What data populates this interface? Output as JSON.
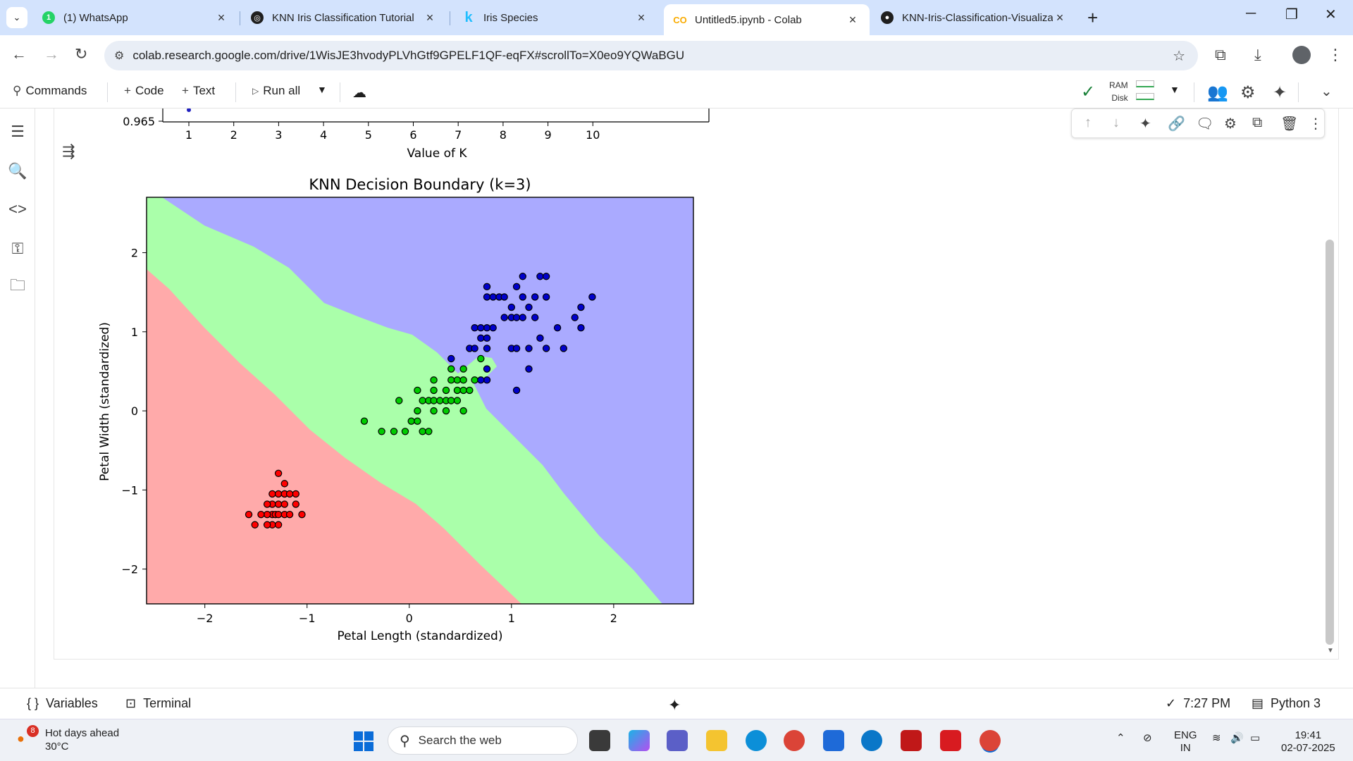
{
  "browser": {
    "tabs": [
      {
        "title": "(1) WhatsApp",
        "favicon": "whatsapp-icon",
        "active": false
      },
      {
        "title": "KNN Iris Classification Tutorial",
        "favicon": "openai-icon",
        "active": false
      },
      {
        "title": "Iris Species",
        "favicon": "kaggle-icon",
        "active": false
      },
      {
        "title": "Untitled5.ipynb - Colab",
        "favicon": "colab-icon",
        "active": true
      },
      {
        "title": "KNN-Iris-Classification-Visualiza",
        "favicon": "github-icon",
        "active": false
      }
    ],
    "whatsapp_badge": "1",
    "url": "colab.research.google.com/drive/1WisJE3hvodyPLVhGtf9GPELF1QF-eqFX#scrollTo=X0eo9YQWaBGU"
  },
  "colab": {
    "toolbar": {
      "commands": "Commands",
      "code": "Code",
      "text": "Text",
      "run_all": "Run all",
      "ram": "RAM",
      "disk": "Disk"
    },
    "status": {
      "variables": "Variables",
      "terminal": "Terminal",
      "time": "7:27 PM",
      "runtime": "Python 3"
    }
  },
  "chart_data": [
    {
      "type": "line",
      "title": "",
      "xlabel": "Value of K",
      "ylabel": "",
      "x_ticks": [
        "1",
        "2",
        "3",
        "4",
        "5",
        "6",
        "7",
        "8",
        "9",
        "10"
      ],
      "y_ticks_visible": [
        "0.965"
      ],
      "note": "top portion scrolled out of view"
    },
    {
      "type": "scatter",
      "title": "KNN Decision Boundary (k=3)",
      "xlabel": "Petal Length (standardized)",
      "ylabel": "Petal Width (standardized)",
      "xlim": [
        -2.57,
        2.78
      ],
      "ylim": [
        -2.44,
        2.7
      ],
      "x_ticks": [
        "−2",
        "−1",
        "0",
        "1",
        "2"
      ],
      "y_ticks": [
        "−2",
        "−1",
        "0",
        "1",
        "2"
      ],
      "regions": {
        "class_0": "#ffaaaa",
        "class_1": "#aaffaa",
        "class_2": "#aaaaff"
      },
      "series": [
        {
          "color": "#ff0000",
          "points": [
            [
              -1.34,
              -1.31
            ],
            [
              -1.31,
              -1.31
            ],
            [
              -1.28,
              -1.31
            ],
            [
              -1.22,
              -1.31
            ],
            [
              -1.17,
              -1.31
            ],
            [
              -1.39,
              -1.31
            ],
            [
              -1.45,
              -1.31
            ],
            [
              -1.34,
              -1.18
            ],
            [
              -1.28,
              -1.18
            ],
            [
              -1.22,
              -1.18
            ],
            [
              -1.11,
              -1.18
            ],
            [
              -1.39,
              -1.18
            ],
            [
              -1.34,
              -1.05
            ],
            [
              -1.28,
              -1.05
            ],
            [
              -1.22,
              -1.05
            ],
            [
              -1.11,
              -1.05
            ],
            [
              -1.57,
              -1.31
            ],
            [
              -1.51,
              -1.44
            ],
            [
              -1.34,
              -1.44
            ],
            [
              -1.28,
              -1.44
            ],
            [
              -1.39,
              -1.44
            ],
            [
              -1.22,
              -1.05
            ],
            [
              -1.22,
              -0.92
            ],
            [
              -1.28,
              -0.79
            ],
            [
              -1.05,
              -1.31
            ],
            [
              -1.17,
              -1.05
            ]
          ]
        },
        {
          "color": "#00cc00",
          "points": [
            [
              -0.44,
              -0.13
            ],
            [
              -0.27,
              -0.26
            ],
            [
              -0.15,
              -0.26
            ],
            [
              -0.04,
              -0.26
            ],
            [
              0.13,
              -0.26
            ],
            [
              0.19,
              -0.26
            ],
            [
              0.02,
              -0.13
            ],
            [
              0.08,
              -0.13
            ],
            [
              0.08,
              0.0
            ],
            [
              0.24,
              0.0
            ],
            [
              0.36,
              0.0
            ],
            [
              0.53,
              0.0
            ],
            [
              -0.1,
              0.13
            ],
            [
              0.13,
              0.13
            ],
            [
              0.19,
              0.13
            ],
            [
              0.24,
              0.13
            ],
            [
              0.3,
              0.13
            ],
            [
              0.36,
              0.13
            ],
            [
              0.41,
              0.13
            ],
            [
              0.47,
              0.13
            ],
            [
              0.08,
              0.26
            ],
            [
              0.24,
              0.26
            ],
            [
              0.36,
              0.26
            ],
            [
              0.47,
              0.26
            ],
            [
              0.53,
              0.26
            ],
            [
              0.59,
              0.26
            ],
            [
              0.24,
              0.39
            ],
            [
              0.41,
              0.39
            ],
            [
              0.47,
              0.39
            ],
            [
              0.53,
              0.39
            ],
            [
              0.64,
              0.39
            ],
            [
              0.41,
              0.53
            ],
            [
              0.53,
              0.53
            ],
            [
              0.7,
              0.66
            ]
          ]
        },
        {
          "color": "#0000cc",
          "points": [
            [
              0.41,
              0.66
            ],
            [
              0.59,
              0.79
            ],
            [
              0.64,
              0.79
            ],
            [
              0.76,
              0.79
            ],
            [
              1.0,
              0.79
            ],
            [
              1.05,
              0.79
            ],
            [
              1.17,
              0.79
            ],
            [
              1.34,
              0.79
            ],
            [
              1.51,
              0.79
            ],
            [
              0.7,
              0.92
            ],
            [
              0.76,
              0.92
            ],
            [
              0.76,
              1.05
            ],
            [
              0.64,
              1.05
            ],
            [
              0.7,
              1.05
            ],
            [
              0.82,
              1.05
            ],
            [
              1.28,
              0.92
            ],
            [
              0.93,
              1.18
            ],
            [
              1.0,
              1.18
            ],
            [
              1.05,
              1.18
            ],
            [
              1.11,
              1.18
            ],
            [
              1.23,
              1.18
            ],
            [
              1.62,
              1.18
            ],
            [
              1.0,
              1.31
            ],
            [
              1.17,
              1.31
            ],
            [
              1.45,
              1.05
            ],
            [
              1.68,
              1.05
            ],
            [
              0.76,
              1.44
            ],
            [
              0.82,
              1.44
            ],
            [
              0.88,
              1.44
            ],
            [
              0.93,
              1.44
            ],
            [
              1.11,
              1.44
            ],
            [
              1.23,
              1.44
            ],
            [
              1.34,
              1.44
            ],
            [
              1.79,
              1.44
            ],
            [
              0.76,
              1.57
            ],
            [
              1.05,
              1.57
            ],
            [
              1.11,
              1.7
            ],
            [
              1.28,
              1.7
            ],
            [
              1.34,
              1.7
            ],
            [
              1.68,
              1.31
            ],
            [
              0.76,
              0.39
            ],
            [
              0.7,
              0.39
            ],
            [
              0.76,
              0.53
            ],
            [
              1.17,
              0.53
            ],
            [
              1.05,
              0.26
            ]
          ]
        }
      ]
    }
  ],
  "taskbar": {
    "weather_title": "Hot days ahead",
    "weather_temp": "30°C",
    "weather_badge": "8",
    "search_placeholder": "Search the web",
    "lang": "ENG",
    "region": "IN",
    "time": "19:41",
    "date": "02-07-2025"
  }
}
